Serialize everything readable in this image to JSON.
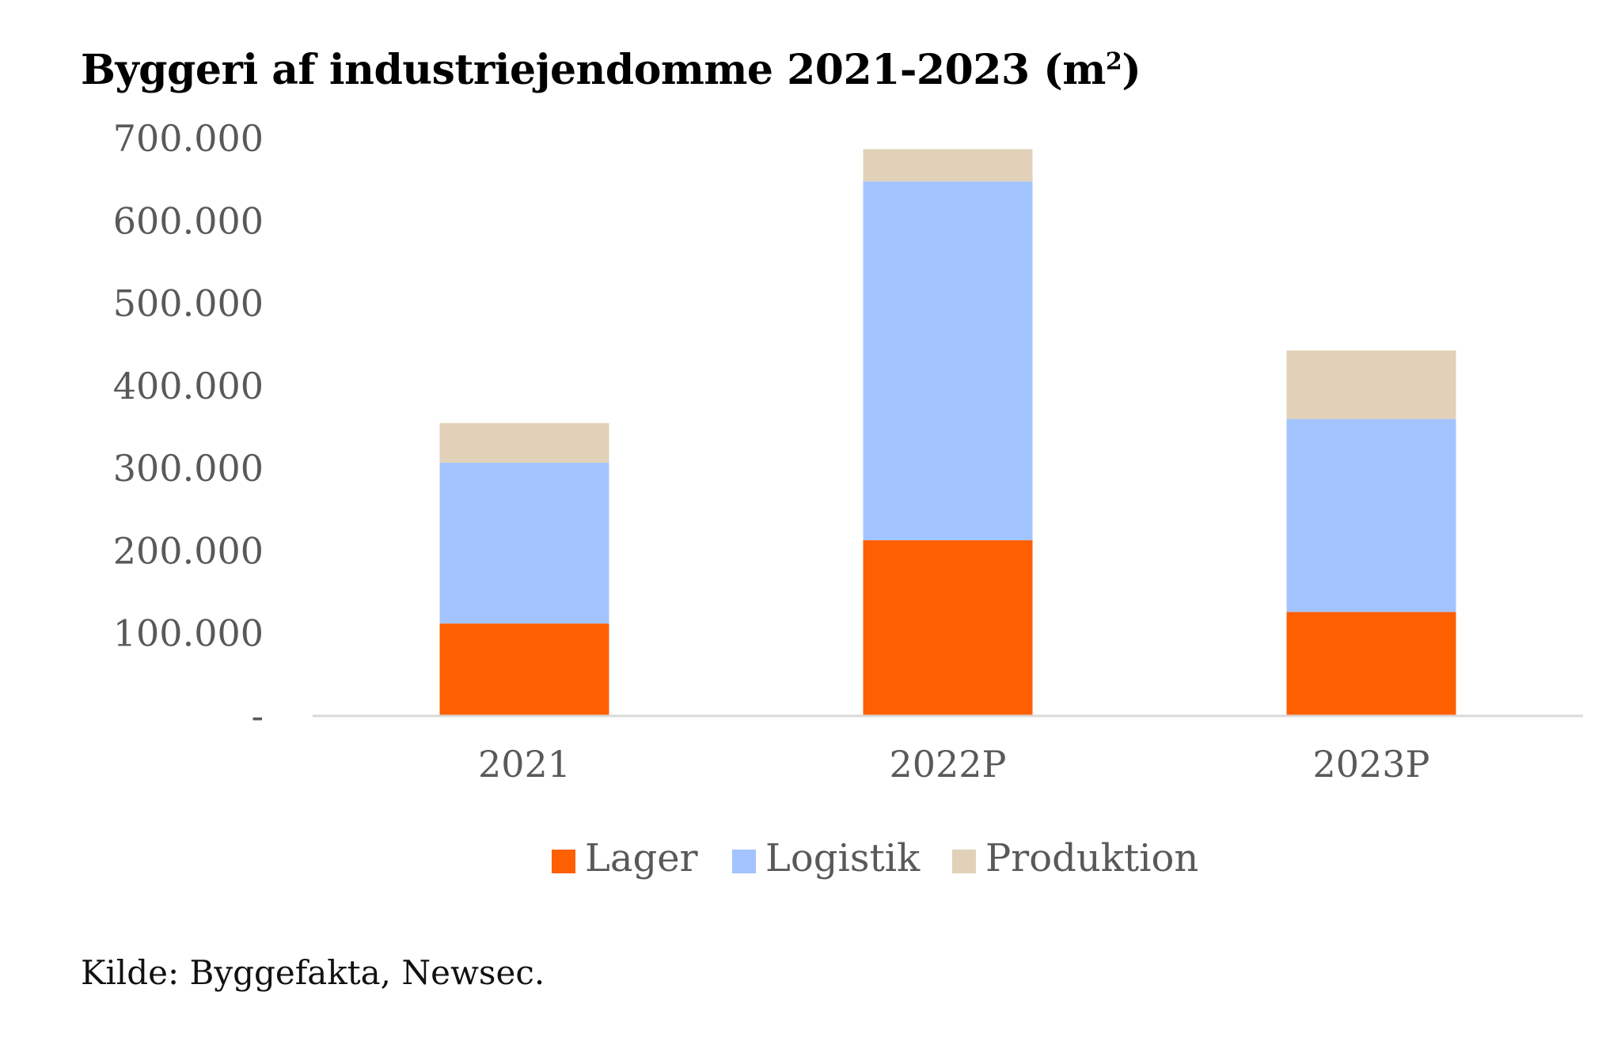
{
  "chart_data": {
    "type": "bar",
    "stacked": true,
    "title": "Byggeri af industriejendomme 2021-2023 (m",
    "title_superscript": "2",
    "title_close": ")",
    "categories": [
      "2021",
      "2022P",
      "2023P"
    ],
    "series": [
      {
        "name": "Lager",
        "color": "#fe5f00",
        "values": [
          112000,
          213000,
          126000
        ]
      },
      {
        "name": "Logistik",
        "color": "#a3c4fe",
        "values": [
          195000,
          435000,
          234000
        ]
      },
      {
        "name": "Produktion",
        "color": "#e1d1b8",
        "values": [
          48000,
          39000,
          83000
        ]
      }
    ],
    "ylim": [
      0,
      700000
    ],
    "yticks": [
      0,
      100000,
      200000,
      300000,
      400000,
      500000,
      600000,
      700000
    ],
    "ytick_labels": [
      "-",
      "100.000",
      "200.000",
      "300.000",
      "400.000",
      "500.000",
      "600.000",
      "700.000"
    ],
    "xlabel": "",
    "ylabel": "",
    "grid": false,
    "legend_position": "bottom",
    "axis_color": "#d9d9d9"
  },
  "source": "Kilde: Byggefakta, Newsec."
}
